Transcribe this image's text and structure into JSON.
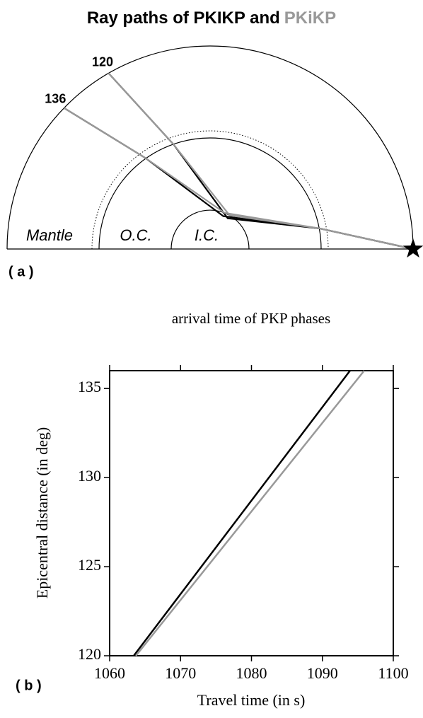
{
  "chart_data": [
    {
      "type": "ray-diagram",
      "title": [
        "Ray paths of PKIKP and",
        "PKiKP"
      ],
      "series": [
        {
          "color": "#000000"
        },
        {
          "color": "#999999"
        }
      ],
      "distances": [
        120,
        136
      ],
      "regions": [
        "Mantle",
        "O.C.",
        "I.C."
      ],
      "panel_label": "( a )"
    },
    {
      "type": "line",
      "title": "arrival time of PKP phases",
      "x_label": "Travel time (in s)",
      "y_label": "Epicentral distance (in deg)",
      "panel_label": "( b )",
      "xlim": [
        1060,
        1100
      ],
      "xticks": [
        1060,
        1070,
        1080,
        1090,
        1100
      ],
      "ylim": [
        120,
        136
      ],
      "yticks": [
        120,
        125,
        130,
        135
      ],
      "series": [
        {
          "color": "#000000",
          "x": [
            1063.4,
            1093.9
          ],
          "values": [
            120,
            136
          ]
        },
        {
          "color": "#999999",
          "x": [
            1063.7,
            1095.9
          ],
          "values": [
            120,
            136
          ]
        }
      ]
    }
  ]
}
